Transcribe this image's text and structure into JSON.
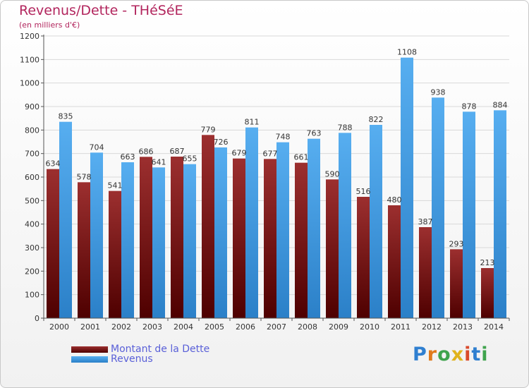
{
  "title": "Revenus/Dette - THéSéE",
  "subtitle": "(en milliers d'€)",
  "logo_text": "Proxiti",
  "colors": {
    "dette": "#7a1f1f",
    "revenus": "#3d9be6",
    "title": "#b2255d",
    "grid": "#d9d9d9",
    "legend_text": "#5a60d8"
  },
  "chart_data": {
    "type": "bar",
    "categories": [
      "2000",
      "2001",
      "2002",
      "2003",
      "2004",
      "2005",
      "2006",
      "2007",
      "2008",
      "2009",
      "2010",
      "2011",
      "2012",
      "2013",
      "2014"
    ],
    "series": [
      {
        "name": "Montant de la Dette",
        "values": [
          634,
          578,
          541,
          686,
          687,
          779,
          679,
          677,
          661,
          590,
          516,
          480,
          387,
          293,
          213
        ]
      },
      {
        "name": "Revenus",
        "values": [
          835,
          704,
          663,
          641,
          655,
          726,
          811,
          748,
          763,
          788,
          822,
          1108,
          938,
          878,
          884
        ]
      }
    ],
    "yticks": [
      0,
      100,
      200,
      300,
      400,
      500,
      600,
      700,
      800,
      900,
      1000,
      1100,
      1200
    ],
    "ylim": [
      0,
      1200
    ],
    "grid": true,
    "legend_position": "bottom-left"
  }
}
